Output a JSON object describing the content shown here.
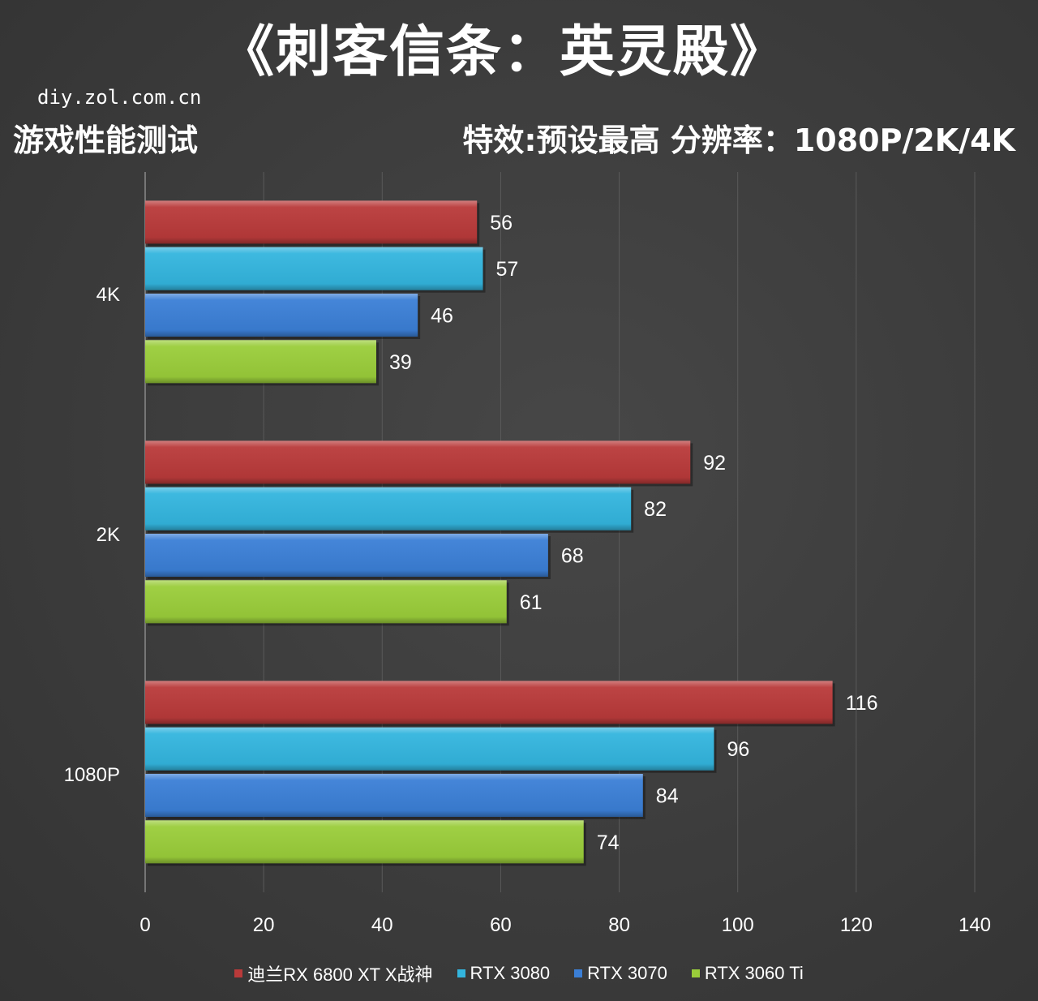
{
  "title": "《刺客信条：英灵殿》",
  "source": "diy.zol.com.cn",
  "subtitle_left": "游戏性能测试",
  "subtitle_right": "特效:预设最高   分辨率：1080P/2K/4K",
  "chart_data": {
    "type": "bar",
    "orientation": "horizontal",
    "categories": [
      "4K",
      "2K",
      "1080P"
    ],
    "series": [
      {
        "name": "迪兰RX 6800 XT X战神",
        "color": "#b93a3a",
        "values": [
          56,
          92,
          116
        ]
      },
      {
        "name": "RTX 3080",
        "color": "#33b5de",
        "values": [
          57,
          82,
          96
        ]
      },
      {
        "name": "RTX 3070",
        "color": "#3b7fd6",
        "values": [
          46,
          68,
          84
        ]
      },
      {
        "name": "RTX 3060 Ti",
        "color": "#9acd3a",
        "values": [
          39,
          61,
          74
        ]
      }
    ],
    "xlim": [
      0,
      140
    ],
    "xticks": [
      0,
      20,
      40,
      60,
      80,
      100,
      120,
      140
    ],
    "grid": true,
    "legend_position": "bottom"
  }
}
